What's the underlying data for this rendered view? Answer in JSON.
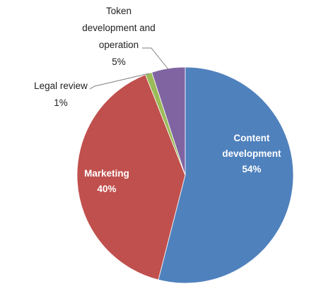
{
  "chart_data": {
    "type": "pie",
    "title": "",
    "slices": [
      {
        "label_lines": [
          "Content",
          "development"
        ],
        "value": 54,
        "value_label": "54%",
        "color": "#4f81bd"
      },
      {
        "label_lines": [
          "Marketing"
        ],
        "value": 40,
        "value_label": "40%",
        "color": "#c0504d"
      },
      {
        "label_lines": [
          "Legal review"
        ],
        "value": 1,
        "value_label": "1%",
        "color": "#9bbb59"
      },
      {
        "label_lines": [
          "Token",
          "development and",
          "operation"
        ],
        "value": 5,
        "value_label": "5%",
        "color": "#8064a2"
      }
    ],
    "start_angle": "12 o'clock",
    "direction": "clockwise",
    "legend": "none",
    "data_labels": "category name and percentage"
  }
}
